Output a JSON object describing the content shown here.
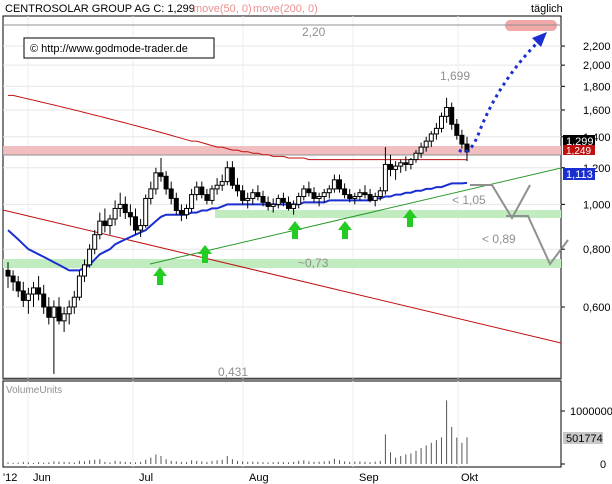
{
  "header": {
    "title": "CENTROSOLAR GROUP AG C: 1,299",
    "ma50_label": "move(50, 0)",
    "ma200_label": "move(200, 0)",
    "period": "täglich"
  },
  "copyright": "© http://www.godmode-trader.de",
  "colors": {
    "ma50": "#e89090",
    "ma200": "#e89090",
    "blue_line": "#1a2fd0",
    "green_line": "#2a9a2a",
    "red_line": "#c01010",
    "arrow_green": "#22cc22",
    "zone_pink": "#f0b0b0",
    "zone_green": "#b8ecb8",
    "target_arrow": "#1a2fd0",
    "projection": "#909090"
  },
  "price_axis": {
    "ticks": [
      "2,200",
      "2,000",
      "1,800",
      "1,600",
      "1,400",
      "1,200",
      "1,000",
      "0,800",
      "0,600"
    ]
  },
  "tags": {
    "last_price": "1,299",
    "ma_value": "1,249",
    "blue_value": "1,113"
  },
  "annotations": {
    "level_220": "2,20",
    "level_1699": "1,699",
    "level_105": "< 1,05",
    "level_089": "< 0,89",
    "level_073": "~0,73",
    "level_0431": "0,431"
  },
  "volume": {
    "title": "VolumeUnits",
    "ticks": [
      "1000000",
      "0"
    ],
    "last_value": "501774"
  },
  "time_axis": {
    "labels": [
      "'12",
      "Jun",
      "Jul",
      "Aug",
      "Sep",
      "Okt"
    ]
  },
  "chart_data": {
    "type": "candlestick",
    "title": "CENTROSOLAR GROUP AG C: 1,299",
    "y_scale": "log",
    "ylim": [
      0.43,
      2.5
    ],
    "x": [
      "2012-05-25",
      "2012-05-28",
      "2012-05-29",
      "2012-05-30",
      "2012-05-31",
      "2012-06-01",
      "2012-06-04",
      "2012-06-05",
      "2012-06-06",
      "2012-06-07",
      "2012-06-08",
      "2012-06-11",
      "2012-06-12",
      "2012-06-13",
      "2012-06-14",
      "2012-06-15",
      "2012-06-18",
      "2012-06-19",
      "2012-06-20",
      "2012-06-21",
      "2012-06-22",
      "2012-06-25",
      "2012-06-26",
      "2012-06-27",
      "2012-06-28",
      "2012-06-29",
      "2012-07-02",
      "2012-07-03",
      "2012-07-04",
      "2012-07-05",
      "2012-07-06",
      "2012-07-09",
      "2012-07-10",
      "2012-07-11",
      "2012-07-12",
      "2012-07-13",
      "2012-07-16",
      "2012-07-17",
      "2012-07-18",
      "2012-07-19",
      "2012-07-20",
      "2012-07-23",
      "2012-07-24",
      "2012-07-25",
      "2012-07-26",
      "2012-07-27",
      "2012-07-30",
      "2012-07-31",
      "2012-08-01",
      "2012-08-02",
      "2012-08-03",
      "2012-08-06",
      "2012-08-07",
      "2012-08-08",
      "2012-08-09",
      "2012-08-10",
      "2012-08-13",
      "2012-08-14",
      "2012-08-15",
      "2012-08-16",
      "2012-08-17",
      "2012-08-20",
      "2012-08-21",
      "2012-08-22",
      "2012-08-23",
      "2012-08-24",
      "2012-08-27",
      "2012-08-28",
      "2012-08-29",
      "2012-08-30",
      "2012-08-31",
      "2012-09-03",
      "2012-09-04",
      "2012-09-05",
      "2012-09-06",
      "2012-09-07",
      "2012-09-10",
      "2012-09-11",
      "2012-09-12",
      "2012-09-13",
      "2012-09-14",
      "2012-09-17",
      "2012-09-18",
      "2012-09-19",
      "2012-09-20",
      "2012-09-21",
      "2012-09-24",
      "2012-09-25",
      "2012-09-26",
      "2012-09-27",
      "2012-09-28"
    ],
    "candles": [
      [
        0.72,
        0.75,
        0.66,
        0.7
      ],
      [
        0.7,
        0.72,
        0.65,
        0.68
      ],
      [
        0.68,
        0.7,
        0.63,
        0.65
      ],
      [
        0.65,
        0.68,
        0.6,
        0.62
      ],
      [
        0.62,
        0.66,
        0.58,
        0.64
      ],
      [
        0.64,
        0.68,
        0.6,
        0.66
      ],
      [
        0.66,
        0.7,
        0.62,
        0.64
      ],
      [
        0.64,
        0.67,
        0.58,
        0.6
      ],
      [
        0.6,
        0.63,
        0.55,
        0.57
      ],
      [
        0.57,
        0.62,
        0.43,
        0.6
      ],
      [
        0.6,
        0.63,
        0.55,
        0.56
      ],
      [
        0.56,
        0.6,
        0.53,
        0.58
      ],
      [
        0.58,
        0.62,
        0.55,
        0.6
      ],
      [
        0.6,
        0.65,
        0.58,
        0.63
      ],
      [
        0.63,
        0.72,
        0.62,
        0.7
      ],
      [
        0.7,
        0.76,
        0.68,
        0.74
      ],
      [
        0.74,
        0.82,
        0.73,
        0.8
      ],
      [
        0.8,
        0.88,
        0.78,
        0.86
      ],
      [
        0.86,
        0.96,
        0.84,
        0.92
      ],
      [
        0.92,
        0.98,
        0.87,
        0.9
      ],
      [
        0.9,
        0.95,
        0.86,
        0.93
      ],
      [
        0.93,
        1.02,
        0.9,
        0.98
      ],
      [
        0.98,
        1.06,
        0.94,
        1.0
      ],
      [
        1.0,
        1.04,
        0.93,
        0.96
      ],
      [
        0.96,
        1.0,
        0.9,
        0.94
      ],
      [
        0.94,
        0.98,
        0.86,
        0.88
      ],
      [
        0.88,
        0.93,
        0.85,
        0.9
      ],
      [
        0.9,
        1.05,
        0.89,
        1.03
      ],
      [
        1.03,
        1.12,
        1.0,
        1.08
      ],
      [
        1.08,
        1.2,
        1.05,
        1.17
      ],
      [
        1.17,
        1.26,
        1.12,
        1.15
      ],
      [
        1.15,
        1.18,
        1.05,
        1.08
      ],
      [
        1.08,
        1.12,
        1.0,
        1.03
      ],
      [
        1.03,
        1.06,
        0.95,
        0.97
      ],
      [
        0.97,
        1.0,
        0.92,
        0.95
      ],
      [
        0.95,
        1.0,
        0.93,
        0.98
      ],
      [
        0.98,
        1.08,
        0.96,
        1.05
      ],
      [
        1.05,
        1.12,
        1.02,
        1.09
      ],
      [
        1.09,
        1.12,
        1.03,
        1.05
      ],
      [
        1.05,
        1.08,
        1.0,
        1.02
      ],
      [
        1.02,
        1.1,
        1.0,
        1.08
      ],
      [
        1.08,
        1.14,
        1.05,
        1.1
      ],
      [
        1.1,
        1.16,
        1.07,
        1.12
      ],
      [
        1.12,
        1.24,
        1.1,
        1.2
      ],
      [
        1.2,
        1.24,
        1.08,
        1.1
      ],
      [
        1.1,
        1.14,
        1.04,
        1.07
      ],
      [
        1.07,
        1.1,
        1.0,
        1.02
      ],
      [
        1.02,
        1.06,
        0.98,
        1.03
      ],
      [
        1.03,
        1.08,
        1.0,
        1.06
      ],
      [
        1.06,
        1.1,
        1.02,
        1.04
      ],
      [
        1.04,
        1.07,
        0.99,
        1.01
      ],
      [
        1.01,
        1.04,
        0.97,
        0.99
      ],
      [
        0.99,
        1.03,
        0.96,
        1.0
      ],
      [
        1.0,
        1.05,
        0.98,
        1.03
      ],
      [
        1.03,
        1.06,
        0.99,
        1.01
      ],
      [
        1.01,
        1.04,
        0.97,
        0.98
      ],
      [
        0.98,
        1.02,
        0.95,
        1.0
      ],
      [
        1.0,
        1.06,
        0.98,
        1.04
      ],
      [
        1.04,
        1.1,
        1.02,
        1.08
      ],
      [
        1.08,
        1.12,
        1.04,
        1.06
      ],
      [
        1.06,
        1.09,
        1.01,
        1.03
      ],
      [
        1.03,
        1.06,
        0.99,
        1.04
      ],
      [
        1.04,
        1.08,
        1.01,
        1.06
      ],
      [
        1.06,
        1.1,
        1.03,
        1.08
      ],
      [
        1.08,
        1.16,
        1.06,
        1.13
      ],
      [
        1.13,
        1.16,
        1.06,
        1.08
      ],
      [
        1.08,
        1.11,
        1.03,
        1.05
      ],
      [
        1.05,
        1.08,
        1.01,
        1.03
      ],
      [
        1.03,
        1.06,
        1.0,
        1.04
      ],
      [
        1.04,
        1.08,
        1.02,
        1.06
      ],
      [
        1.06,
        1.1,
        1.03,
        1.05
      ],
      [
        1.05,
        1.08,
        1.01,
        1.02
      ],
      [
        1.02,
        1.06,
        0.99,
        1.04
      ],
      [
        1.04,
        1.09,
        1.02,
        1.07
      ],
      [
        1.07,
        1.33,
        1.05,
        1.22
      ],
      [
        1.22,
        1.28,
        1.15,
        1.19
      ],
      [
        1.19,
        1.24,
        1.13,
        1.21
      ],
      [
        1.21,
        1.25,
        1.17,
        1.23
      ],
      [
        1.23,
        1.27,
        1.18,
        1.22
      ],
      [
        1.22,
        1.26,
        1.19,
        1.25
      ],
      [
        1.25,
        1.31,
        1.23,
        1.29
      ],
      [
        1.29,
        1.36,
        1.26,
        1.33
      ],
      [
        1.33,
        1.4,
        1.3,
        1.37
      ],
      [
        1.37,
        1.44,
        1.33,
        1.42
      ],
      [
        1.42,
        1.5,
        1.38,
        1.46
      ],
      [
        1.46,
        1.58,
        1.43,
        1.55
      ],
      [
        1.55,
        1.7,
        1.5,
        1.62
      ],
      [
        1.62,
        1.66,
        1.45,
        1.49
      ],
      [
        1.49,
        1.53,
        1.38,
        1.41
      ],
      [
        1.41,
        1.45,
        1.32,
        1.35
      ],
      [
        1.35,
        1.4,
        1.24,
        1.299
      ]
    ],
    "volume": [
      30000,
      20000,
      25000,
      40000,
      30000,
      20000,
      35000,
      25000,
      30000,
      50000,
      45000,
      40000,
      35000,
      30000,
      60000,
      50000,
      70000,
      80000,
      90000,
      40000,
      30000,
      60000,
      50000,
      40000,
      35000,
      30000,
      40000,
      80000,
      120000,
      180000,
      150000,
      90000,
      60000,
      50000,
      40000,
      35000,
      70000,
      60000,
      50000,
      40000,
      60000,
      70000,
      80000,
      150000,
      90000,
      60000,
      50000,
      40000,
      45000,
      40000,
      35000,
      30000,
      35000,
      40000,
      35000,
      30000,
      40000,
      60000,
      70000,
      50000,
      40000,
      45000,
      50000,
      60000,
      100000,
      70000,
      50000,
      40000,
      45000,
      50000,
      40000,
      35000,
      45000,
      60000,
      560000,
      220000,
      120000,
      150000,
      180000,
      200000,
      250000,
      300000,
      350000,
      400000,
      450000,
      500000,
      1200000,
      700000,
      500000,
      400000,
      501774
    ],
    "series": [
      {
        "name": "move(50, 0)",
        "values": [
          0.88,
          0.86,
          0.84,
          0.82,
          0.8,
          0.79,
          0.78,
          0.77,
          0.76,
          0.75,
          0.74,
          0.73,
          0.72,
          0.72,
          0.72,
          0.73,
          0.74,
          0.76,
          0.78,
          0.79,
          0.8,
          0.82,
          0.83,
          0.84,
          0.85,
          0.86,
          0.87,
          0.88,
          0.9,
          0.92,
          0.94,
          0.95,
          0.95,
          0.95,
          0.95,
          0.95,
          0.96,
          0.96,
          0.97,
          0.97,
          0.98,
          0.98,
          0.99,
          1.0,
          1.0,
          1.0,
          1.0,
          1.0,
          1.0,
          1.0,
          1.0,
          1.0,
          1.0,
          1.0,
          1.0,
          1.0,
          1.0,
          1.0,
          1.01,
          1.01,
          1.01,
          1.01,
          1.01,
          1.02,
          1.02,
          1.02,
          1.02,
          1.02,
          1.02,
          1.02,
          1.02,
          1.02,
          1.03,
          1.03,
          1.04,
          1.04,
          1.05,
          1.05,
          1.06,
          1.06,
          1.07,
          1.07,
          1.08,
          1.08,
          1.09,
          1.09,
          1.1,
          1.11,
          1.11,
          1.11,
          1.113
        ]
      },
      {
        "name": "move(200, 0)",
        "values": [
          1.72,
          1.72,
          1.71,
          1.7,
          1.69,
          1.68,
          1.67,
          1.66,
          1.65,
          1.64,
          1.63,
          1.62,
          1.61,
          1.6,
          1.59,
          1.58,
          1.57,
          1.56,
          1.55,
          1.54,
          1.53,
          1.52,
          1.51,
          1.5,
          1.49,
          1.48,
          1.47,
          1.46,
          1.45,
          1.44,
          1.43,
          1.42,
          1.41,
          1.4,
          1.39,
          1.38,
          1.37,
          1.37,
          1.36,
          1.35,
          1.34,
          1.33,
          1.33,
          1.32,
          1.31,
          1.31,
          1.3,
          1.3,
          1.29,
          1.29,
          1.28,
          1.28,
          1.27,
          1.27,
          1.27,
          1.26,
          1.26,
          1.26,
          1.26,
          1.25,
          1.25,
          1.25,
          1.25,
          1.25,
          1.25,
          1.25,
          1.25,
          1.25,
          1.25,
          1.25,
          1.25,
          1.25,
          1.25,
          1.25,
          1.25,
          1.25,
          1.25,
          1.25,
          1.25,
          1.25,
          1.25,
          1.25,
          1.25,
          1.25,
          1.25,
          1.25,
          1.25,
          1.25,
          1.25,
          1.25,
          1.249
        ]
      }
    ],
    "horizontal_levels": [
      2.2,
      1.249,
      1.05,
      0.89,
      0.73,
      0.431
    ]
  }
}
